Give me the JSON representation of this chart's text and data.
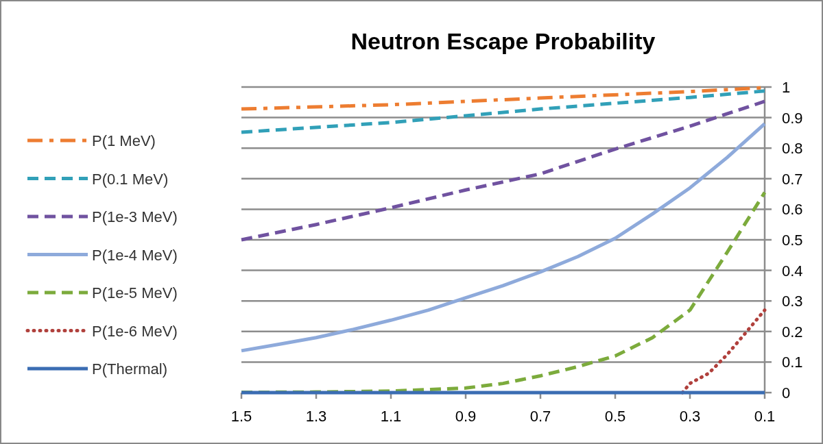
{
  "chart_data": {
    "type": "line",
    "title": "Neutron Escape Probability",
    "xlim": [
      1.5,
      0.1
    ],
    "xticks": [
      1.5,
      1.3,
      1.1,
      0.9,
      0.7,
      0.5,
      0.3,
      0.1
    ],
    "ylim": [
      0,
      1
    ],
    "yticks": [
      0,
      0.1,
      0.2,
      0.3,
      0.4,
      0.5,
      0.6,
      0.7,
      0.8,
      0.9,
      1
    ],
    "grid": "y",
    "legend": "left",
    "series": [
      {
        "name": "P(1 MeV)",
        "color": "#ed7d31",
        "line_style": "dashdot",
        "x": [
          1.5,
          1.1,
          0.7,
          0.3,
          0.1
        ],
        "values": [
          0.928,
          0.942,
          0.964,
          0.985,
          0.998
        ]
      },
      {
        "name": "P(0.1 MeV)",
        "color": "#31a0b8",
        "line_style": "dashed",
        "x": [
          1.5,
          1.1,
          0.7,
          0.3,
          0.1
        ],
        "values": [
          0.852,
          0.884,
          0.928,
          0.966,
          0.987
        ]
      },
      {
        "name": "P(1e-3 MeV)",
        "color": "#7052a0",
        "line_style": "dashed",
        "x": [
          1.5,
          1.3,
          1.1,
          0.9,
          0.7,
          0.5,
          0.3,
          0.1
        ],
        "values": [
          0.5,
          0.55,
          0.605,
          0.663,
          0.716,
          0.797,
          0.872,
          0.953
        ]
      },
      {
        "name": "P(1e-4 MeV)",
        "color": "#8eaadb",
        "line_style": "solid",
        "x": [
          1.5,
          1.4,
          1.3,
          1.2,
          1.1,
          1.0,
          0.9,
          0.8,
          0.7,
          0.6,
          0.5,
          0.4,
          0.3,
          0.2,
          0.1
        ],
        "values": [
          0.137,
          0.158,
          0.18,
          0.207,
          0.237,
          0.27,
          0.31,
          0.35,
          0.395,
          0.445,
          0.505,
          0.585,
          0.67,
          0.77,
          0.88
        ]
      },
      {
        "name": "P(1e-5 MeV)",
        "color": "#7cab3c",
        "line_style": "dashed",
        "x": [
          1.5,
          1.3,
          1.1,
          0.9,
          0.8,
          0.7,
          0.6,
          0.5,
          0.4,
          0.3,
          0.2,
          0.1
        ],
        "values": [
          0.001,
          0.002,
          0.005,
          0.015,
          0.03,
          0.055,
          0.085,
          0.12,
          0.18,
          0.27,
          0.46,
          0.655
        ]
      },
      {
        "name": "P(1e-6 MeV)",
        "color": "#b0403c",
        "line_style": "dotted",
        "x": [
          0.32,
          0.3,
          0.25,
          0.2,
          0.15,
          0.1
        ],
        "values": [
          0,
          0.03,
          0.063,
          0.125,
          0.197,
          0.27
        ]
      },
      {
        "name": "P(Thermal)",
        "color": "#3b6db3",
        "line_style": "solid",
        "x": [
          1.5,
          0.1
        ],
        "values": [
          0,
          0
        ]
      }
    ]
  }
}
